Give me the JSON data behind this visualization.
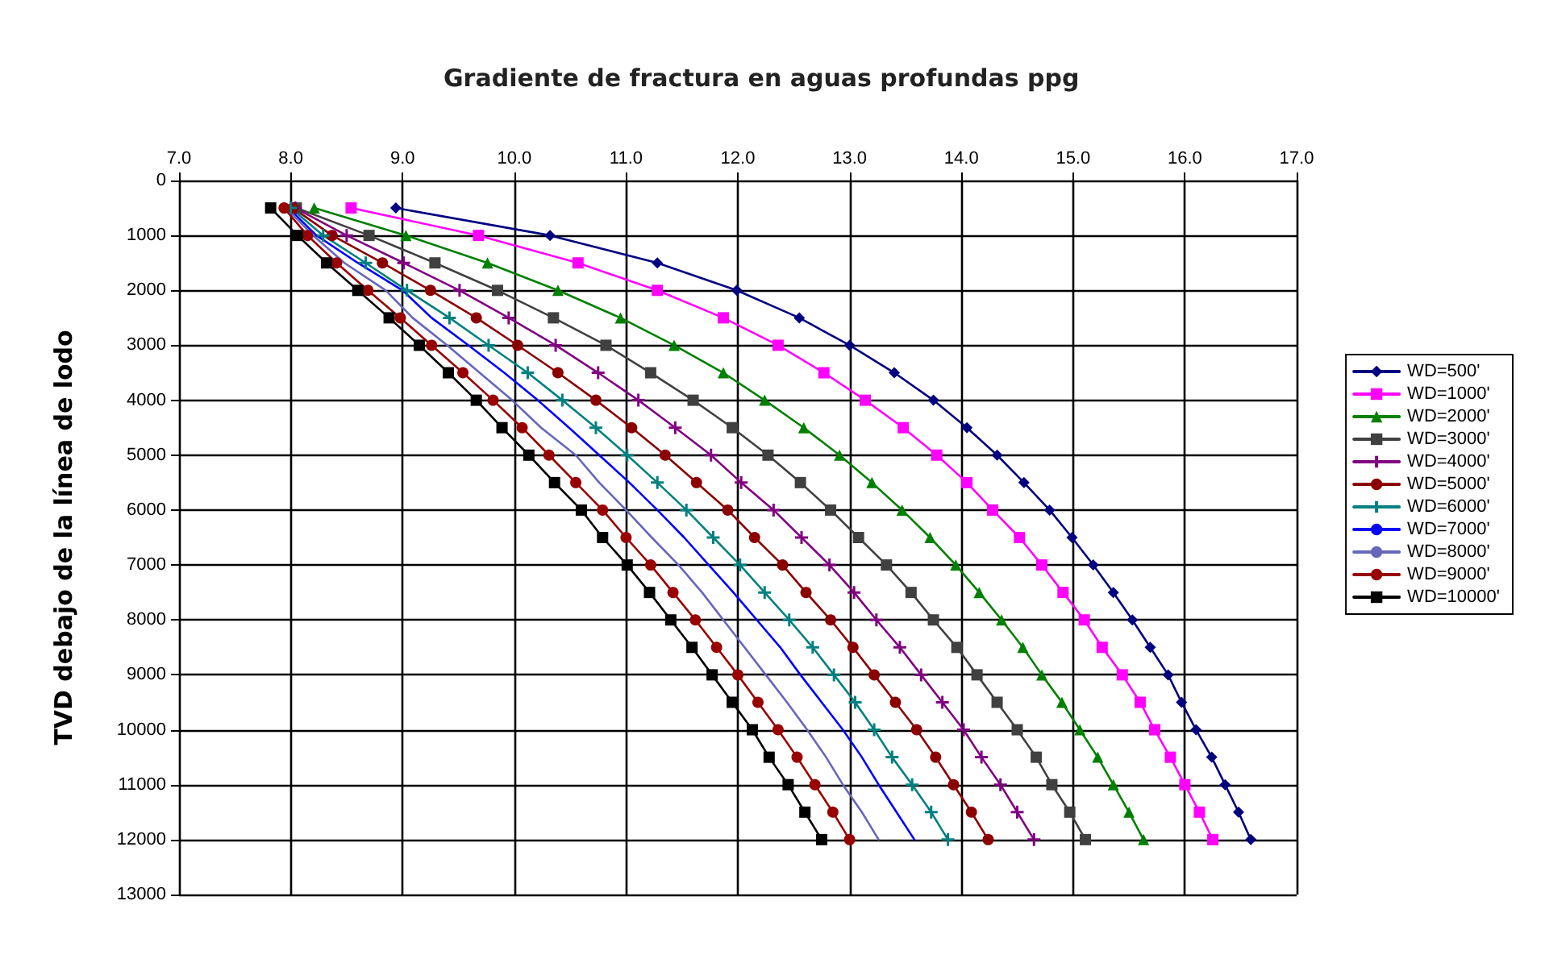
{
  "chart_data": {
    "type": "line",
    "title": "Gradiente de fractura en aguas profundas ppg",
    "ylabel": "TVD debajo de la línea de lodo",
    "xlim": [
      7,
      17
    ],
    "xticks": [
      {
        "value": 7,
        "label": "7.0"
      },
      {
        "value": 8,
        "label": "8.0"
      },
      {
        "value": 9,
        "label": "9.0"
      },
      {
        "value": 10,
        "label": "10.0"
      },
      {
        "value": 11,
        "label": "11.0"
      },
      {
        "value": 12,
        "label": "12.0"
      },
      {
        "value": 13,
        "label": "13.0"
      },
      {
        "value": 14,
        "label": "14.0"
      },
      {
        "value": 15,
        "label": "15.0"
      },
      {
        "value": 16,
        "label": "16.0"
      },
      {
        "value": 17,
        "label": "17.0"
      }
    ],
    "ylim": [
      13000,
      0
    ],
    "yticks": [
      0,
      1000,
      2000,
      3000,
      4000,
      5000,
      6000,
      7000,
      8000,
      9000,
      10000,
      11000,
      12000,
      13000
    ],
    "grid": true,
    "legend": "right",
    "line_style": "solid",
    "series": [
      {
        "name": "WD=500'",
        "color": "#000080",
        "marker": "diamond",
        "x": [
          8.94,
          10.32,
          11.28,
          11.99,
          12.55,
          13.0,
          13.4,
          13.75,
          14.05,
          14.32,
          14.56,
          14.79,
          14.99,
          15.18,
          15.36,
          15.53,
          15.69,
          15.85,
          15.97,
          16.1,
          16.24,
          16.36,
          16.48,
          16.59
        ],
        "values": [
          500,
          1000,
          1500,
          2000,
          2500,
          3000,
          3500,
          4000,
          4500,
          5000,
          5500,
          6000,
          6500,
          7000,
          7500,
          8000,
          8500,
          9000,
          9500,
          10000,
          10500,
          11000,
          11500,
          12000
        ]
      },
      {
        "name": "WD=1000'",
        "color": "#ff00ff",
        "marker": "square",
        "x": [
          8.54,
          9.68,
          10.57,
          11.28,
          11.87,
          12.36,
          12.77,
          13.14,
          13.48,
          13.78,
          14.05,
          14.28,
          14.52,
          14.72,
          14.91,
          15.1,
          15.26,
          15.44,
          15.6,
          15.73,
          15.87,
          16.0,
          16.13,
          16.25
        ],
        "values": [
          500,
          1000,
          1500,
          2000,
          2500,
          3000,
          3500,
          4000,
          4500,
          5000,
          5500,
          6000,
          6500,
          7000,
          7500,
          8000,
          8500,
          9000,
          9500,
          10000,
          10500,
          11000,
          11500,
          12000
        ]
      },
      {
        "name": "WD=2000'",
        "color": "#008000",
        "marker": "triangle",
        "x": [
          8.21,
          9.03,
          9.76,
          10.39,
          10.95,
          11.43,
          11.87,
          12.24,
          12.59,
          12.91,
          13.2,
          13.47,
          13.72,
          13.95,
          14.16,
          14.36,
          14.55,
          14.72,
          14.9,
          15.06,
          15.22,
          15.36,
          15.5,
          15.63
        ],
        "values": [
          500,
          1000,
          1500,
          2000,
          2500,
          3000,
          3500,
          4000,
          4500,
          5000,
          5500,
          6000,
          6500,
          7000,
          7500,
          8000,
          8500,
          9000,
          9500,
          10000,
          10500,
          11000,
          11500,
          12000
        ]
      },
      {
        "name": "WD=3000'",
        "color": "#404040",
        "marker": "square",
        "x": [
          8.05,
          8.7,
          9.29,
          9.85,
          10.35,
          10.82,
          11.22,
          11.6,
          11.95,
          12.27,
          12.56,
          12.83,
          13.08,
          13.33,
          13.55,
          13.75,
          13.96,
          14.14,
          14.32,
          14.5,
          14.67,
          14.81,
          14.97,
          15.11
        ],
        "values": [
          500,
          1000,
          1500,
          2000,
          2500,
          3000,
          3500,
          4000,
          4500,
          5000,
          5500,
          6000,
          6500,
          7000,
          7500,
          8000,
          8500,
          9000,
          9500,
          10000,
          10500,
          11000,
          11500,
          12000
        ]
      },
      {
        "name": "WD=4000'",
        "color": "#800080",
        "marker": "cross",
        "x": [
          8.04,
          8.5,
          9.01,
          9.51,
          9.95,
          10.37,
          10.75,
          11.11,
          11.44,
          11.76,
          12.03,
          12.32,
          12.57,
          12.82,
          13.04,
          13.24,
          13.45,
          13.64,
          13.83,
          14.02,
          14.18,
          14.35,
          14.5,
          14.65
        ],
        "values": [
          500,
          1000,
          1500,
          2000,
          2500,
          3000,
          3500,
          4000,
          4500,
          5000,
          5500,
          6000,
          6500,
          7000,
          7500,
          8000,
          8500,
          9000,
          9500,
          10000,
          10500,
          11000,
          11500,
          12000
        ]
      },
      {
        "name": "WD=5000'",
        "color": "#8b0000",
        "marker": "circle",
        "x": [
          8.02,
          8.37,
          8.82,
          9.25,
          9.66,
          10.03,
          10.39,
          10.73,
          11.05,
          11.35,
          11.63,
          11.91,
          12.15,
          12.4,
          12.61,
          12.83,
          13.03,
          13.22,
          13.41,
          13.6,
          13.77,
          13.93,
          14.09,
          14.24
        ],
        "values": [
          500,
          1000,
          1500,
          2000,
          2500,
          3000,
          3500,
          4000,
          4500,
          5000,
          5500,
          6000,
          6500,
          7000,
          7500,
          8000,
          8500,
          9000,
          9500,
          10000,
          10500,
          11000,
          11500,
          12000
        ]
      },
      {
        "name": "WD=6000'",
        "color": "#008080",
        "marker": "cross",
        "x": [
          8.0,
          8.29,
          8.67,
          9.04,
          9.42,
          9.77,
          10.12,
          10.43,
          10.73,
          11.01,
          11.28,
          11.54,
          11.78,
          12.02,
          12.24,
          12.46,
          12.67,
          12.86,
          13.05,
          13.22,
          13.38,
          13.56,
          13.73,
          13.88
        ],
        "values": [
          500,
          1000,
          1500,
          2000,
          2500,
          3000,
          3500,
          4000,
          4500,
          5000,
          5500,
          6000,
          6500,
          7000,
          7500,
          8000,
          8500,
          9000,
          9500,
          10000,
          10500,
          11000,
          11500,
          12000
        ]
      },
      {
        "name": "WD=7000'",
        "color": "#0000ff",
        "marker": "none",
        "x": [
          7.98,
          8.23,
          8.6,
          9.0,
          9.26,
          9.59,
          9.91,
          10.21,
          10.49,
          10.76,
          11.03,
          11.28,
          11.52,
          11.74,
          11.96,
          12.17,
          12.38,
          12.56,
          12.75,
          12.94,
          13.11,
          13.26,
          13.42,
          13.58
        ],
        "values": [
          500,
          1000,
          1500,
          2000,
          2500,
          3000,
          3500,
          4000,
          4500,
          5000,
          5500,
          6000,
          6500,
          7000,
          7500,
          8000,
          8500,
          9000,
          9500,
          10000,
          10500,
          11000,
          11500,
          12000
        ]
      },
      {
        "name": "WD=8000'",
        "color": "#6666bb",
        "marker": "none",
        "x": [
          7.96,
          8.2,
          8.48,
          8.85,
          9.09,
          9.4,
          9.69,
          9.98,
          10.24,
          10.55,
          10.76,
          11.0,
          11.23,
          11.47,
          11.68,
          11.87,
          12.06,
          12.25,
          12.44,
          12.62,
          12.79,
          12.94,
          13.11,
          13.26
        ],
        "values": [
          500,
          1000,
          1500,
          2000,
          2500,
          3000,
          3500,
          4000,
          4500,
          5000,
          5500,
          6000,
          6500,
          7000,
          7500,
          8000,
          8500,
          9000,
          9500,
          10000,
          10500,
          11000,
          11500,
          12000
        ]
      },
      {
        "name": "WD=9000'",
        "color": "#990000",
        "marker": "circle",
        "x": [
          7.94,
          8.15,
          8.41,
          8.69,
          8.98,
          9.26,
          9.54,
          9.81,
          10.07,
          10.31,
          10.55,
          10.79,
          11.0,
          11.22,
          11.42,
          11.62,
          11.81,
          12.0,
          12.18,
          12.36,
          12.53,
          12.69,
          12.85,
          13.0
        ],
        "values": [
          500,
          1000,
          1500,
          2000,
          2500,
          3000,
          3500,
          4000,
          4500,
          5000,
          5500,
          6000,
          6500,
          7000,
          7500,
          8000,
          8500,
          9000,
          9500,
          10000,
          10500,
          11000,
          11500,
          12000
        ]
      },
      {
        "name": "WD=10000'",
        "color": "#000000",
        "marker": "square",
        "x": [
          7.82,
          8.06,
          8.32,
          8.6,
          8.88,
          9.15,
          9.41,
          9.66,
          9.89,
          10.13,
          10.36,
          10.6,
          10.79,
          11.01,
          11.21,
          11.4,
          11.59,
          11.77,
          11.95,
          12.13,
          12.28,
          12.45,
          12.6,
          12.75
        ],
        "values": [
          500,
          1000,
          1500,
          2000,
          2500,
          3000,
          3500,
          4000,
          4500,
          5000,
          5500,
          6000,
          6500,
          7000,
          7500,
          8000,
          8500,
          9000,
          9500,
          10000,
          10500,
          11000,
          11500,
          12000
        ]
      }
    ]
  }
}
